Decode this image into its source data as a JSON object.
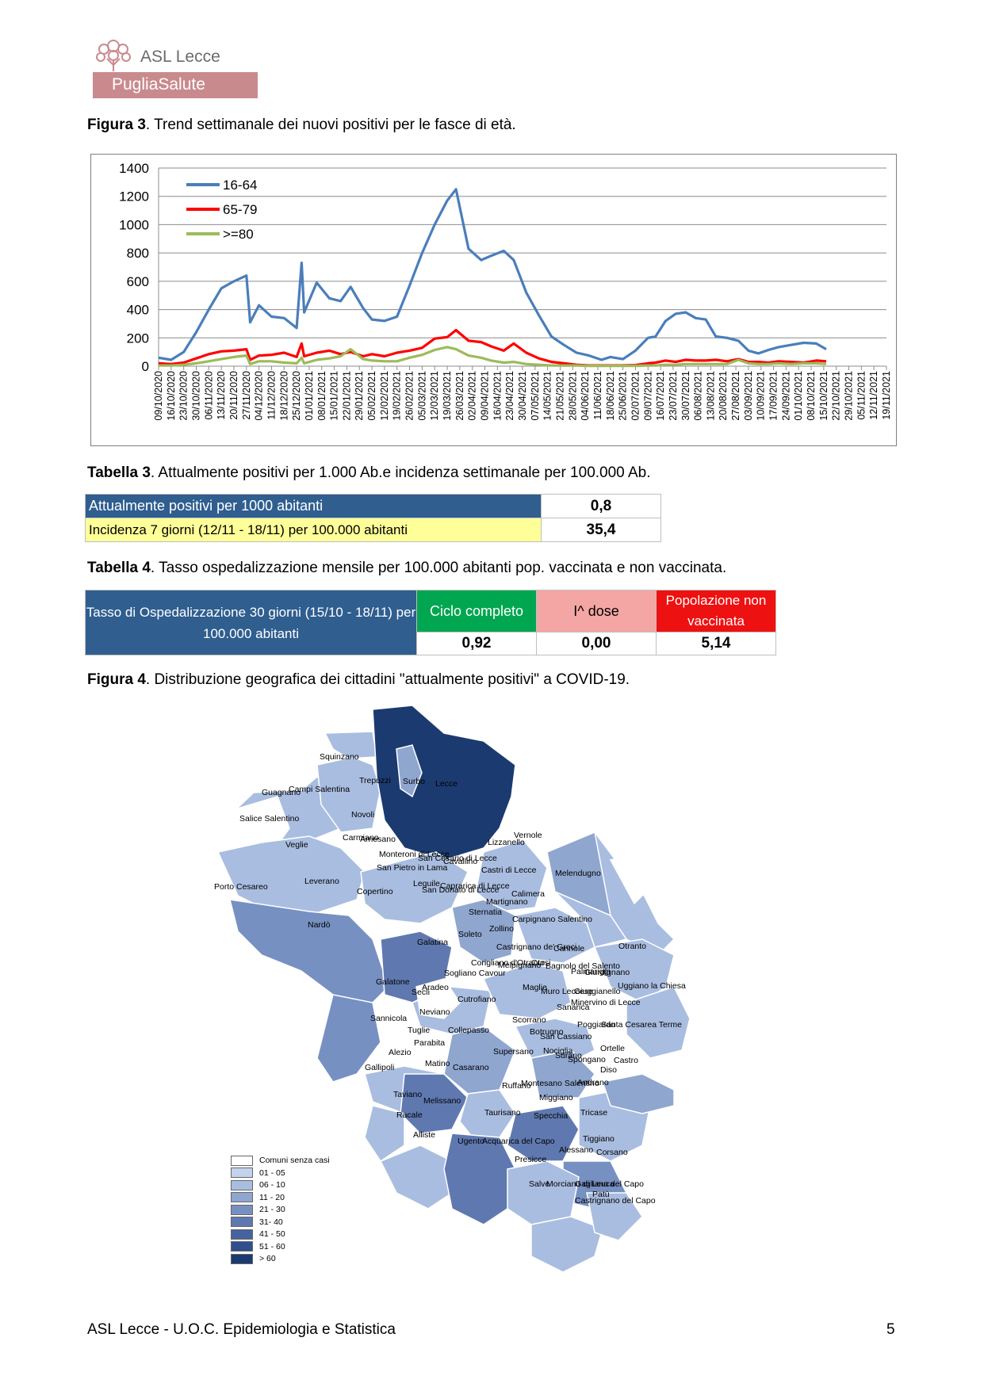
{
  "logo": {
    "brand": "ASL Lecce",
    "sub": "PugliaSalute"
  },
  "fig3": {
    "label": "Figura 3",
    "caption": ". Trend settimanale dei nuovi positivi per le fasce di età."
  },
  "chart_data": {
    "type": "line",
    "title": "",
    "xlabel": "",
    "ylabel": "",
    "ylim": [
      0,
      1400
    ],
    "yticks": [
      0,
      200,
      400,
      600,
      800,
      1000,
      1200,
      1400
    ],
    "grid": true,
    "legend_position": "top-left",
    "x_labels": [
      "09/10/2020",
      "16/10/2020",
      "23/10/2020",
      "30/10/2020",
      "06/11/2020",
      "13/11/2020",
      "20/11/2020",
      "27/11/2020",
      "04/12/2020",
      "11/12/2020",
      "18/12/2020",
      "25/12/2020",
      "01/01/2021",
      "08/01/2021",
      "15/01/2021",
      "22/01/2021",
      "29/01/2021",
      "05/02/2021",
      "12/02/2021",
      "19/02/2021",
      "26/02/2021",
      "05/03/2021",
      "12/03/2021",
      "19/03/2021",
      "26/03/2021",
      "02/04/2021",
      "09/04/2021",
      "16/04/2021",
      "23/04/2021",
      "30/04/2021",
      "07/05/2021",
      "14/05/2021",
      "21/05/2021",
      "28/05/2021",
      "04/06/2021",
      "11/06/2021",
      "18/06/2021",
      "25/06/2021",
      "02/07/2021",
      "09/07/2021",
      "16/07/2021",
      "23/07/2021",
      "30/07/2021",
      "06/08/2021",
      "13/08/2021",
      "20/08/2021",
      "27/08/2021",
      "03/09/2021",
      "10/09/2021",
      "17/09/2021",
      "24/09/2021",
      "01/10/2021",
      "08/10/2021",
      "15/10/2021",
      "22/10/2021",
      "29/10/2021",
      "05/11/2021",
      "12/11/2021",
      "19/11/2021"
    ],
    "series": [
      {
        "name": "16-64",
        "color": "#4a7ebb",
        "points": [
          [
            0,
            60
          ],
          [
            1,
            45
          ],
          [
            2,
            100
          ],
          [
            3,
            240
          ],
          [
            4,
            400
          ],
          [
            5,
            550
          ],
          [
            6,
            600
          ],
          [
            7,
            640
          ],
          [
            7.3,
            310
          ],
          [
            8,
            430
          ],
          [
            9,
            350
          ],
          [
            10,
            340
          ],
          [
            11,
            270
          ],
          [
            11.4,
            730
          ],
          [
            11.6,
            380
          ],
          [
            12.6,
            590
          ],
          [
            13.6,
            480
          ],
          [
            14.5,
            460
          ],
          [
            15.3,
            560
          ],
          [
            16.3,
            410
          ],
          [
            17,
            330
          ],
          [
            18,
            320
          ],
          [
            19,
            350
          ],
          [
            20,
            570
          ],
          [
            21,
            800
          ],
          [
            22,
            1000
          ],
          [
            23,
            1170
          ],
          [
            23.7,
            1250
          ],
          [
            24.7,
            830
          ],
          [
            25.7,
            750
          ],
          [
            26.5,
            780
          ],
          [
            27.5,
            815
          ],
          [
            28.3,
            750
          ],
          [
            29.3,
            520
          ],
          [
            30.3,
            360
          ],
          [
            31.3,
            210
          ],
          [
            32.3,
            150
          ],
          [
            33.3,
            95
          ],
          [
            34.3,
            75
          ],
          [
            35.3,
            45
          ],
          [
            36,
            65
          ],
          [
            37,
            50
          ],
          [
            38,
            110
          ],
          [
            39,
            200
          ],
          [
            39.6,
            210
          ],
          [
            40.4,
            320
          ],
          [
            41.2,
            370
          ],
          [
            42,
            380
          ],
          [
            42.8,
            340
          ],
          [
            43.6,
            330
          ],
          [
            44.4,
            210
          ],
          [
            45.3,
            200
          ],
          [
            46.2,
            180
          ],
          [
            47,
            110
          ],
          [
            47.8,
            90
          ],
          [
            48.6,
            115
          ],
          [
            49.4,
            135
          ],
          [
            50.4,
            150
          ],
          [
            51.4,
            165
          ],
          [
            52.4,
            160
          ],
          [
            53.2,
            120
          ]
        ]
      },
      {
        "name": "65-79",
        "color": "#ff0000",
        "points": [
          [
            0,
            20
          ],
          [
            1,
            15
          ],
          [
            2,
            25
          ],
          [
            3,
            55
          ],
          [
            4,
            85
          ],
          [
            5,
            105
          ],
          [
            6,
            110
          ],
          [
            7,
            120
          ],
          [
            7.3,
            45
          ],
          [
            8,
            75
          ],
          [
            9,
            80
          ],
          [
            10,
            95
          ],
          [
            11,
            65
          ],
          [
            11.4,
            160
          ],
          [
            11.6,
            70
          ],
          [
            12.6,
            95
          ],
          [
            13.6,
            110
          ],
          [
            14.5,
            85
          ],
          [
            15.3,
            100
          ],
          [
            16.3,
            70
          ],
          [
            17,
            85
          ],
          [
            18,
            70
          ],
          [
            19,
            95
          ],
          [
            20,
            110
          ],
          [
            21,
            130
          ],
          [
            22,
            195
          ],
          [
            23,
            205
          ],
          [
            23.7,
            255
          ],
          [
            24.7,
            180
          ],
          [
            25.7,
            170
          ],
          [
            26.5,
            140
          ],
          [
            27.5,
            110
          ],
          [
            28.3,
            160
          ],
          [
            29.3,
            95
          ],
          [
            30.3,
            55
          ],
          [
            31.3,
            30
          ],
          [
            32.3,
            20
          ],
          [
            33.3,
            10
          ],
          [
            34.3,
            5
          ],
          [
            35.3,
            5
          ],
          [
            36,
            5
          ],
          [
            37,
            5
          ],
          [
            38,
            8
          ],
          [
            39,
            20
          ],
          [
            39.6,
            25
          ],
          [
            40.4,
            40
          ],
          [
            41.2,
            30
          ],
          [
            42,
            45
          ],
          [
            42.8,
            40
          ],
          [
            43.6,
            40
          ],
          [
            44.4,
            45
          ],
          [
            45.3,
            35
          ],
          [
            46.2,
            50
          ],
          [
            47,
            30
          ],
          [
            47.8,
            30
          ],
          [
            48.6,
            25
          ],
          [
            49.4,
            35
          ],
          [
            50.4,
            30
          ],
          [
            51.4,
            25
          ],
          [
            52.4,
            40
          ],
          [
            53.2,
            35
          ]
        ]
      },
      {
        "name": ">=80",
        "color": "#9bbb59",
        "points": [
          [
            0,
            5
          ],
          [
            1,
            5
          ],
          [
            2,
            10
          ],
          [
            3,
            20
          ],
          [
            4,
            35
          ],
          [
            5,
            50
          ],
          [
            6,
            65
          ],
          [
            7,
            75
          ],
          [
            7.3,
            15
          ],
          [
            8,
            35
          ],
          [
            9,
            35
          ],
          [
            10,
            25
          ],
          [
            11,
            20
          ],
          [
            11.4,
            60
          ],
          [
            11.6,
            20
          ],
          [
            12.6,
            45
          ],
          [
            13.6,
            55
          ],
          [
            14.5,
            70
          ],
          [
            15.3,
            120
          ],
          [
            16.3,
            50
          ],
          [
            17,
            40
          ],
          [
            18,
            35
          ],
          [
            19,
            35
          ],
          [
            20,
            60
          ],
          [
            21,
            80
          ],
          [
            22,
            115
          ],
          [
            23,
            135
          ],
          [
            23.7,
            120
          ],
          [
            24.7,
            75
          ],
          [
            25.7,
            60
          ],
          [
            26.5,
            40
          ],
          [
            27.5,
            25
          ],
          [
            28.3,
            30
          ],
          [
            29.3,
            15
          ],
          [
            30.3,
            10
          ],
          [
            31.3,
            5
          ],
          [
            32.3,
            5
          ],
          [
            33.3,
            5
          ],
          [
            34.3,
            2
          ],
          [
            35.3,
            2
          ],
          [
            36,
            2
          ],
          [
            37,
            2
          ],
          [
            38,
            3
          ],
          [
            39,
            5
          ],
          [
            39.6,
            5
          ],
          [
            40.4,
            10
          ],
          [
            41.2,
            10
          ],
          [
            42,
            15
          ],
          [
            42.8,
            15
          ],
          [
            43.6,
            15
          ],
          [
            44.4,
            15
          ],
          [
            45.3,
            15
          ],
          [
            46.2,
            45
          ],
          [
            47,
            20
          ],
          [
            47.8,
            15
          ],
          [
            48.6,
            15
          ],
          [
            49.4,
            20
          ],
          [
            50.4,
            15
          ],
          [
            51.4,
            20
          ],
          [
            52.4,
            20
          ],
          [
            53.2,
            15
          ]
        ]
      }
    ]
  },
  "tab3": {
    "label": "Tabella 3",
    "caption": ". Attualmente positivi per 1.000 Ab.e incidenza settimanale per 100.000 Ab.",
    "rows": [
      {
        "label": "Attualmente positivi per 1000 abitanti",
        "value": "0,8"
      },
      {
        "label": "Incidenza 7 giorni (12/11 - 18/11)  per 100.000 abitanti",
        "value": "35,4"
      }
    ]
  },
  "tab4": {
    "label": "Tabella 4",
    "caption": ". Tasso ospedalizzazione mensile per 100.000 abitanti pop. vaccinata e non vaccinata.",
    "head": "Tasso di Ospedalizzazione 30 giorni (15/10 - 18/11)  per 100.000 abitanti",
    "cols": [
      "Ciclo completo",
      "I^ dose",
      "Popolazione non vaccinata"
    ],
    "values": [
      "0,92",
      "0,00",
      "5,14"
    ]
  },
  "fig4": {
    "label": "Figura 4",
    "caption": ". Distribuzione  geografica dei cittadini \"attualmente positivi\" a COVID-19."
  },
  "map": {
    "colors": {
      "none": "#ffffff",
      "c1": "#c4d3ec",
      "c2": "#a9bde0",
      "c3": "#8fa6cf",
      "c4": "#7790c2",
      "c5": "#5f79b0",
      "c6": "#46639f",
      "c7": "#2f4f8f",
      "c8": "#1b3a70"
    },
    "legend": [
      "Comuni senza casi",
      "01 - 05",
      "06 - 10",
      "11 - 20",
      "21 - 30",
      "31- 40",
      "41 - 50",
      "51 - 60",
      "> 60"
    ],
    "towns": [
      "Squinzano",
      "Trepuzzi",
      "Surbo",
      "Lecce",
      "Guagnano",
      "Campi Salentina",
      "Salice Salentino",
      "Novoli",
      "Carmiano",
      "Arnesano",
      "Vernole",
      "Lizzanello",
      "Veglie",
      "Monteroni di Lecce",
      "San Cesario di Lecce",
      "Cavallino",
      "San Pietro in Lama",
      "Castri di Lecce",
      "Melendugno",
      "Leverano",
      "Leguile",
      "Caprarica di Lecce",
      "Porto Cesareo",
      "Copertino",
      "San Donato di Lecce",
      "Calimera",
      "Martignano",
      "Sternatia",
      "Carpignano Salentino",
      "Nardò",
      "Zollino",
      "Soleto",
      "Galatina",
      "Castrignano de' Greci",
      "Cannole",
      "Otranto",
      "Corigliano d'Otranto",
      "Melpignano",
      "Cursi",
      "Bagnolo del Salento",
      "Palmariggi",
      "Giurdignano",
      "Sogliano Cavour",
      "Galatone",
      "Aradeo",
      "Seclì",
      "Maglie",
      "Muro Leccese",
      "Scorrano",
      "Giuggianello",
      "Uggiano la Chiesa",
      "Cutrofiano",
      "Sanarica",
      "Minervino di Lecce",
      "Neviano",
      "Sannicola",
      "Tuglie",
      "Collepasso",
      "Poggiardo",
      "Santa Cesarea Terme",
      "Botrugno",
      "San Cassiano",
      "Parabita",
      "Alezio",
      "Supersano",
      "Nociglia",
      "Surano",
      "Ortelle",
      "Spongano",
      "Castro",
      "Gallipoli",
      "Matino",
      "Casarano",
      "Diso",
      "Andrano",
      "Montesano Salentino",
      "Ruffano",
      "Taviano",
      "Melissano",
      "Miggiano",
      "Racale",
      "Taurisano",
      "Specchia",
      "Tricase",
      "Alliste",
      "Ugento",
      "Acquarica del Capo",
      "Tiggiano",
      "Alessano",
      "Corsano",
      "Presicce",
      "Salve",
      "Morciano di Leuca",
      "Gagliano del Capo",
      "Patù",
      "Castrignano del Capo"
    ]
  },
  "footer": "ASL Lecce - U.O.C. Epidemiologia e Statistica",
  "page": "5"
}
